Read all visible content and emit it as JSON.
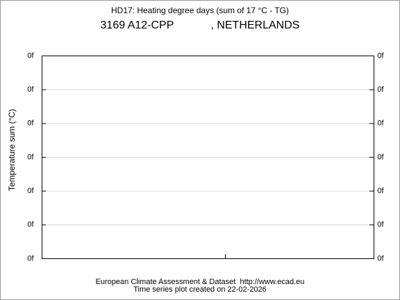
{
  "chart_data": {
    "type": "line",
    "title": "HD17: Heating degree days (sum of 17 °C - TG)",
    "subtitle": "3169 A12-CPP            , NETHERLANDS",
    "ylabel": "Temperature sum (°C)",
    "ytick_labels": [
      "0f",
      "0f",
      "0f",
      "0f",
      "0f",
      "0f",
      "0f"
    ],
    "footer": [
      "European Climate Assessment & Dataset  http://www.ecad.eu",
      "Time series plot created on 22-02-2026"
    ],
    "grid": true
  }
}
